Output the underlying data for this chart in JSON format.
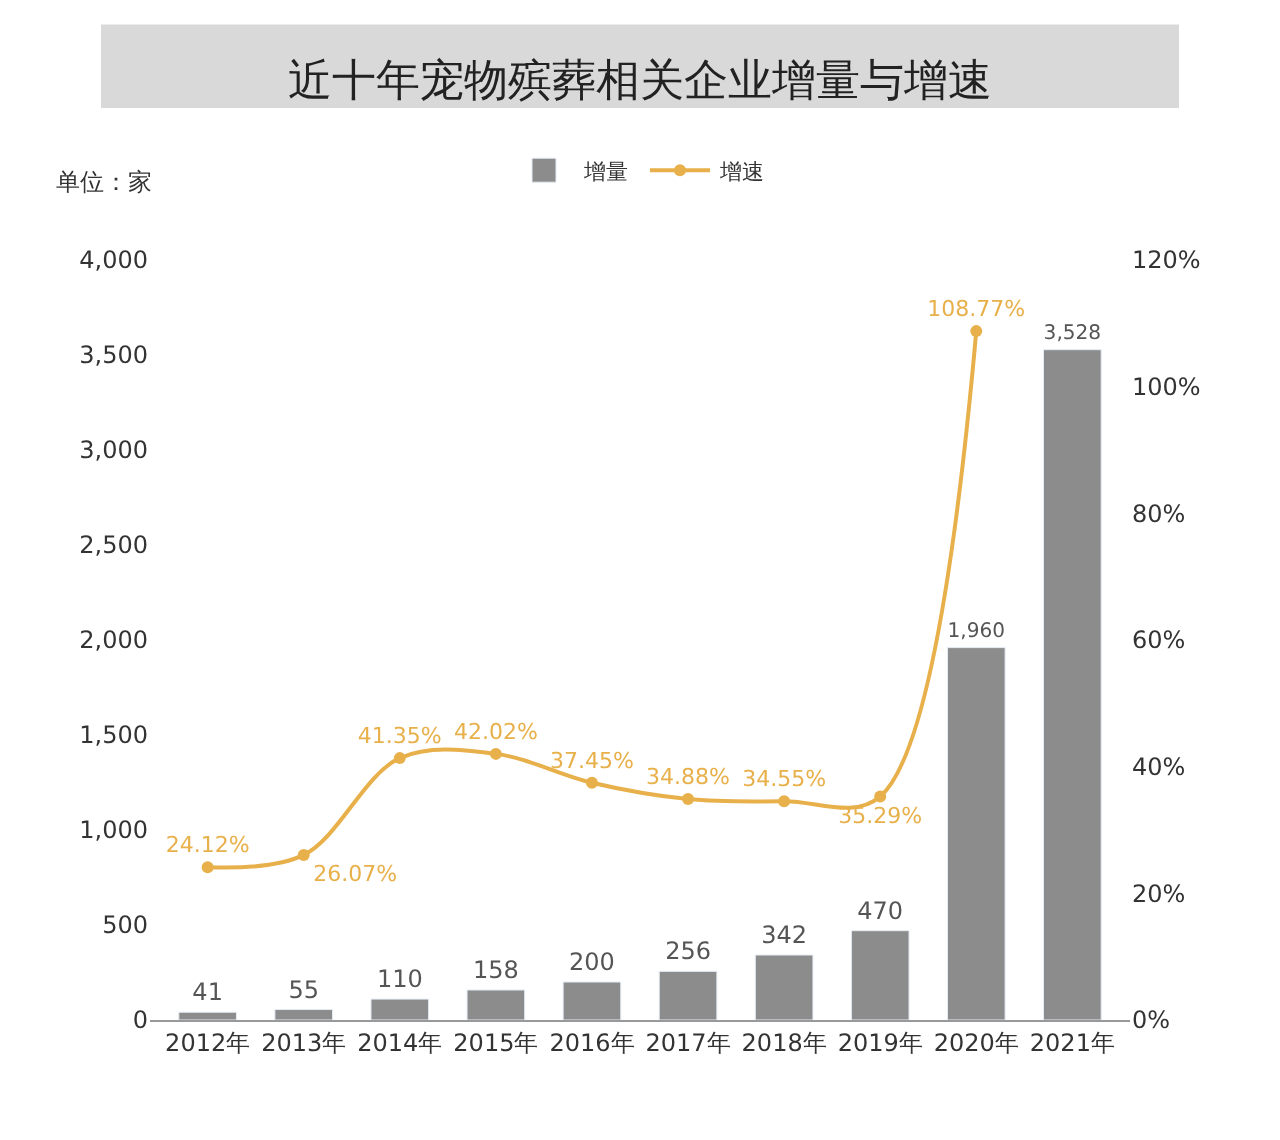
{
  "chart_data": {
    "type": "bar",
    "title": "近十年宠物殡葬相关企业增量与增速",
    "ylabel": "单位：家",
    "categories": [
      "2012年",
      "2013年",
      "2014年",
      "2015年",
      "2016年",
      "2017年",
      "2018年",
      "2019年",
      "2020年",
      "2021年"
    ],
    "series": [
      {
        "name": "增量",
        "color": "#8c8c8c",
        "values": [
          41,
          55,
          110,
          158,
          200,
          256,
          342,
          470,
          1960,
          3528
        ],
        "value_labels": [
          "41",
          "55",
          "110",
          "158",
          "200",
          "256",
          "342",
          "470",
          "1,960",
          "3,528"
        ]
      },
      {
        "name": "增速",
        "type": "line",
        "axis": "y2",
        "color": "#e8b04a",
        "marker": "circle",
        "values": [
          24.12,
          26.07,
          41.35,
          42.02,
          37.45,
          34.88,
          34.55,
          35.29,
          108.77,
          null
        ],
        "value_labels": [
          "24.12%",
          "26.07%",
          "41.35%",
          "42.02%",
          "37.45%",
          "34.88%",
          "34.55%",
          "35.29%",
          "108.77%",
          null
        ]
      }
    ],
    "ylim": [
      0,
      4000
    ],
    "yticks": [
      0,
      {
        "value": 500,
        "label": "500"
      },
      {
        "value": 1000,
        "label": "1,000"
      },
      {
        "value": 1500,
        "label": "1,500"
      },
      {
        "value": 2000,
        "label": "2,000"
      },
      {
        "value": 2500,
        "label": "2,500"
      },
      {
        "value": 3000,
        "label": "3,000"
      },
      {
        "value": 3500,
        "label": "3,500"
      },
      {
        "value": 4000,
        "label": "4,000"
      }
    ],
    "y2lim": [
      0,
      120
    ],
    "y2ticks": [
      {
        "value": 0,
        "label": "0%"
      },
      {
        "value": 20,
        "label": "20%"
      },
      {
        "value": 40,
        "label": "40%"
      },
      {
        "value": 60,
        "label": "60%"
      },
      {
        "value": 80,
        "label": "80%"
      },
      {
        "value": 100,
        "label": "100%"
      },
      {
        "value": 120,
        "label": "120%"
      }
    ],
    "grid": false,
    "legend": "top"
  }
}
